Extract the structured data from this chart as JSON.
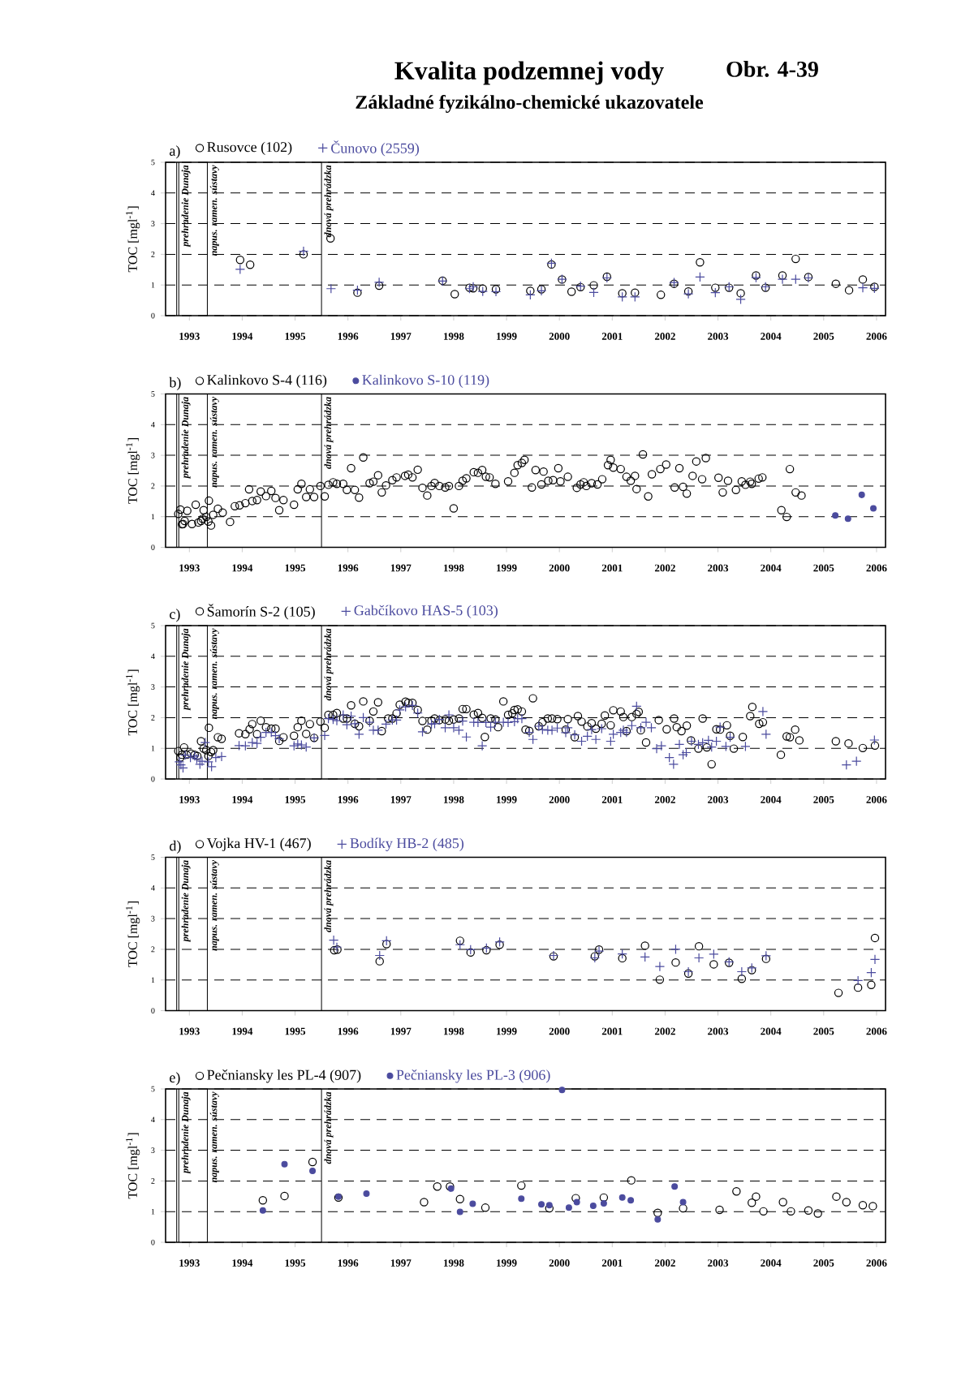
{
  "chart_data": [
    {
      "type": "scatter",
      "title": "Kvalita podzemnej vody",
      "subtitle": "Základné fyzikálno-chemické ukazovatele",
      "annotations": [
        "Obr. 4-39"
      ],
      "legend_title": "a)",
      "ylabel": "TOC [mgl$^{-1}$]",
      "legend": "top left",
      "grid": "y",
      "xlim": [
        1992.55,
        2006.17
      ],
      "xticks": [
        1993,
        1994,
        1995,
        1996,
        1997,
        1998,
        1999,
        2000,
        2001,
        2002,
        2003,
        2004,
        2005,
        2006
      ],
      "ylim": [
        0,
        5
      ],
      "yticks": [
        0,
        1,
        2,
        3,
        4,
        5
      ],
      "ref_lines": [
        {
          "axis": "x",
          "value": 1992.76,
          "label": null
        },
        {
          "axis": "x",
          "value": 1992.8,
          "label": "prehradenie Dunaja"
        },
        {
          "axis": "x",
          "value": 1993.34,
          "label": "napus. ramen. sústavy"
        },
        {
          "axis": "x",
          "value": 1995.5,
          "label": "dnová prehrádzka"
        }
      ],
      "series": [
        {
          "name": "Rusovce (102)",
          "color": "#000000",
          "marker": "circle",
          "x": [
            1993.96,
            1994.15,
            1995.16,
            1995.67,
            1996.18,
            1996.59,
            1997.79,
            1998.02,
            1998.3,
            1998.37,
            1998.55,
            1998.8,
            1999.45,
            1999.66,
            1999.85,
            2000.05,
            2000.23,
            2000.4,
            2000.65,
            2000.9,
            2001.19,
            2001.43,
            2001.92,
            2002.17,
            2002.44,
            2002.66,
            2002.95,
            2003.21,
            2003.43,
            2003.72,
            2003.9,
            2004.22,
            2004.47,
            2004.71,
            2005.23,
            2005.48,
            2005.74,
            2005.96
          ],
          "values": [
            1.82,
            1.66,
            2.0,
            2.52,
            0.75,
            0.98,
            1.14,
            0.7,
            0.91,
            0.89,
            0.88,
            0.86,
            0.81,
            0.86,
            1.67,
            1.18,
            0.78,
            0.93,
            0.99,
            1.27,
            0.73,
            0.75,
            0.68,
            1.04,
            0.79,
            1.74,
            0.91,
            0.91,
            0.73,
            1.31,
            0.91,
            1.31,
            1.85,
            1.26,
            1.04,
            0.83,
            1.18,
            0.94
          ]
        },
        {
          "name": "Čunovo (2559)",
          "color": "#4b4b9e",
          "marker": "cross",
          "x": [
            1993.96,
            1995.16,
            1995.68,
            1996.18,
            1996.59,
            1997.79,
            1998.3,
            1998.37,
            1998.55,
            1998.8,
            1999.45,
            1999.66,
            1999.85,
            2000.05,
            2000.4,
            2000.65,
            2000.9,
            2001.19,
            2001.43,
            2002.17,
            2002.44,
            2002.66,
            2002.95,
            2003.21,
            2003.43,
            2003.72,
            2003.9,
            2004.22,
            2004.47,
            2004.71,
            2005.74,
            2005.96
          ],
          "values": [
            1.51,
            2.1,
            0.88,
            0.83,
            1.09,
            1.13,
            0.88,
            0.94,
            0.79,
            0.78,
            0.68,
            0.81,
            1.71,
            1.19,
            0.96,
            0.76,
            1.23,
            0.61,
            0.61,
            1.08,
            0.71,
            1.26,
            0.75,
            0.94,
            0.53,
            1.24,
            0.94,
            1.19,
            1.19,
            1.23,
            0.91,
            0.89
          ]
        }
      ]
    },
    {
      "type": "scatter",
      "legend_title": "b)",
      "ylabel": "TOC [mgl$^{-1}$]",
      "legend": "top left",
      "grid": "y",
      "xlim": [
        1992.55,
        2006.17
      ],
      "xticks": [
        1993,
        1994,
        1995,
        1996,
        1997,
        1998,
        1999,
        2000,
        2001,
        2002,
        2003,
        2004,
        2005,
        2006
      ],
      "ylim": [
        0,
        5
      ],
      "yticks": [
        0,
        1,
        2,
        3,
        4,
        5
      ],
      "ref_lines": [
        {
          "axis": "x",
          "value": 1992.76,
          "label": null
        },
        {
          "axis": "x",
          "value": 1992.8,
          "label": "prehradenie Dunaja"
        },
        {
          "axis": "x",
          "value": 1993.34,
          "label": "napus. ramen. sústavy"
        },
        {
          "axis": "x",
          "value": 1995.5,
          "label": "dnová prehrádzka"
        }
      ],
      "series": [
        {
          "name": "Kalinkovo S-4 (116)",
          "color": "#000000",
          "marker": "circle",
          "x": [
            1992.79,
            1992.83,
            1992.86,
            1992.88,
            1992.91,
            1992.96,
            1993.05,
            1993.12,
            1993.17,
            1993.22,
            1993.25,
            1993.27,
            1993.32,
            1993.36,
            1993.37,
            1993.41,
            1993.45,
            1993.54,
            1993.63,
            1993.77,
            1993.86,
            1993.95,
            1994.06,
            1994.13,
            1994.19,
            1994.28,
            1994.35,
            1994.45,
            1994.55,
            1994.63,
            1994.7,
            1994.78,
            1994.98,
            1995.05,
            1995.12,
            1995.21,
            1995.28,
            1995.36,
            1995.48,
            1995.56,
            1995.63,
            1995.72,
            1995.79,
            1995.91,
            1995.98,
            1996.06,
            1996.13,
            1996.21,
            1996.29,
            1996.41,
            1996.48,
            1996.57,
            1996.64,
            1996.72,
            1996.84,
            1996.92,
            1997.08,
            1997.14,
            1997.22,
            1997.32,
            1997.41,
            1997.5,
            1997.58,
            1997.64,
            1997.73,
            1997.84,
            1997.91,
            1998.0,
            1998.1,
            1998.17,
            1998.24,
            1998.38,
            1998.46,
            1998.54,
            1998.61,
            1998.68,
            1998.79,
            1999.03,
            1999.15,
            1999.21,
            1999.29,
            1999.34,
            1999.48,
            1999.55,
            1999.66,
            1999.7,
            1999.79,
            1999.88,
            1999.98,
            2000.02,
            2000.16,
            2000.33,
            2000.4,
            2000.46,
            2000.51,
            2000.61,
            2000.72,
            2000.81,
            2000.92,
            2000.97,
            2001.02,
            2001.16,
            2001.27,
            2001.35,
            2001.43,
            2001.46,
            2001.58,
            2001.68,
            2001.75,
            2001.91,
            2002.02,
            2002.18,
            2002.27,
            2002.34,
            2002.41,
            2002.52,
            2002.59,
            2002.7,
            2002.77,
            2003.01,
            2003.09,
            2003.19,
            2003.34,
            2003.45,
            2003.52,
            2003.61,
            2003.64,
            2003.77,
            2003.84,
            2004.2,
            2004.3,
            2004.36,
            2004.47,
            2004.58
          ],
          "values": [
            1.09,
            1.23,
            0.75,
            0.76,
            0.86,
            1.19,
            0.76,
            1.39,
            0.81,
            0.86,
            0.93,
            1.21,
            0.99,
            0.84,
            1.52,
            0.71,
            1.06,
            1.26,
            1.13,
            0.83,
            1.34,
            1.37,
            1.44,
            1.89,
            1.51,
            1.54,
            1.82,
            1.67,
            1.84,
            1.61,
            1.21,
            1.54,
            1.39,
            1.89,
            2.07,
            1.64,
            1.89,
            1.64,
            2.0,
            1.66,
            2.04,
            2.12,
            2.07,
            2.07,
            1.87,
            2.58,
            1.87,
            1.62,
            2.93,
            2.09,
            2.14,
            2.35,
            1.79,
            2.02,
            2.19,
            2.28,
            2.33,
            2.37,
            2.28,
            2.53,
            1.94,
            1.69,
            2.0,
            2.1,
            2.0,
            1.95,
            2.0,
            1.27,
            2.0,
            2.17,
            2.25,
            2.45,
            2.43,
            2.52,
            2.3,
            2.28,
            2.07,
            2.15,
            2.43,
            2.68,
            2.75,
            2.85,
            1.95,
            2.52,
            2.05,
            2.47,
            2.17,
            2.19,
            2.58,
            2.15,
            2.3,
            1.94,
            2.05,
            2.12,
            2.0,
            2.09,
            2.05,
            2.22,
            2.68,
            2.85,
            2.6,
            2.55,
            2.3,
            2.17,
            2.33,
            1.9,
            3.03,
            1.66,
            2.38,
            2.55,
            2.7,
            1.95,
            2.58,
            1.97,
            1.75,
            2.33,
            2.8,
            2.22,
            2.91,
            2.27,
            1.79,
            2.17,
            1.87,
            2.15,
            2.04,
            2.14,
            2.07,
            2.24,
            2.28,
            1.21,
            0.99,
            2.55,
            1.79,
            1.69
          ]
        },
        {
          "name": "Kalinkovo S-10 (119)",
          "color": "#4b4b9e",
          "marker": "circle",
          "x": [
            2005.22,
            2005.46,
            2005.72,
            2005.94
          ],
          "values": [
            1.04,
            0.93,
            1.71,
            1.27
          ]
        }
      ]
    },
    {
      "type": "scatter",
      "legend_title": "c)",
      "ylabel": "TOC [mgl$^{-1}$]",
      "legend": "top left",
      "grid": "y",
      "xlim": [
        1992.55,
        2006.17
      ],
      "xticks": [
        1993,
        1994,
        1995,
        1996,
        1997,
        1998,
        1999,
        2000,
        2001,
        2002,
        2003,
        2004,
        2005,
        2006
      ],
      "ylim": [
        0,
        5
      ],
      "yticks": [
        0,
        1,
        2,
        3,
        4,
        5
      ],
      "ref_lines": [
        {
          "axis": "x",
          "value": 1992.76,
          "label": null
        },
        {
          "axis": "x",
          "value": 1992.8,
          "label": "prehradenie Dunaja"
        },
        {
          "axis": "x",
          "value": 1993.34,
          "label": "napus. ramen. sústavy"
        },
        {
          "axis": "x",
          "value": 1995.5,
          "label": "dnová prehrádzka"
        }
      ],
      "series": [
        {
          "name": "Šamorín S-2 (105)",
          "color": "#000000",
          "marker": "circle",
          "x": [
            1992.79,
            1992.83,
            1992.86,
            1992.9,
            1992.95,
            1993.03,
            1993.1,
            1993.15,
            1993.22,
            1993.27,
            1993.32,
            1993.36,
            1993.37,
            1993.41,
            1993.45,
            1993.54,
            1993.61,
            1993.94,
            1994.06,
            1994.14,
            1994.19,
            1994.28,
            1994.35,
            1994.45,
            1994.55,
            1994.63,
            1994.7,
            1994.78,
            1994.98,
            1995.05,
            1995.12,
            1995.21,
            1995.28,
            1995.36,
            1995.48,
            1995.56,
            1995.63,
            1995.72,
            1995.79,
            1995.91,
            1995.98,
            1996.06,
            1996.13,
            1996.21,
            1996.29,
            1996.41,
            1996.48,
            1996.57,
            1996.64,
            1996.76,
            1996.84,
            1996.92,
            1996.98,
            1997.09,
            1997.14,
            1997.22,
            1997.32,
            1997.41,
            1997.5,
            1997.58,
            1997.64,
            1997.73,
            1997.84,
            1997.91,
            1998.0,
            1998.1,
            1998.17,
            1998.24,
            1998.38,
            1998.46,
            1998.54,
            1998.59,
            1998.7,
            1998.79,
            1998.84,
            1998.94,
            1999.03,
            1999.11,
            1999.15,
            1999.21,
            1999.29,
            1999.36,
            1999.43,
            1999.5,
            1999.61,
            1999.68,
            1999.78,
            1999.86,
            1999.96,
            2000.12,
            2000.16,
            2000.29,
            2000.35,
            2000.42,
            2000.53,
            2000.61,
            2000.69,
            2000.8,
            2000.86,
            2000.97,
            2001.02,
            2001.16,
            2001.21,
            2001.27,
            2001.37,
            2001.46,
            2001.5,
            2001.54,
            2001.64,
            2001.88,
            2002.03,
            2002.17,
            2002.22,
            2002.31,
            2002.41,
            2002.49,
            2002.63,
            2002.71,
            2002.79,
            2002.88,
            2002.97,
            2003.04,
            2003.17,
            2003.23,
            2003.3,
            2003.47,
            2003.61,
            2003.65,
            2003.78,
            2003.85,
            2004.19,
            2004.3,
            2004.36,
            2004.46,
            2004.54,
            2005.23,
            2005.47,
            2005.74,
            2005.97
          ],
          "values": [
            0.91,
            0.7,
            0.79,
            1.03,
            0.79,
            0.83,
            0.79,
            0.75,
            1.23,
            0.99,
            0.94,
            0.75,
            1.67,
            0.88,
            0.94,
            1.36,
            1.31,
            1.49,
            1.46,
            1.62,
            1.79,
            1.46,
            1.9,
            1.69,
            1.64,
            1.64,
            1.24,
            1.36,
            1.41,
            1.69,
            1.9,
            1.47,
            1.79,
            1.34,
            1.87,
            1.67,
            2.09,
            2.09,
            2.15,
            1.97,
            1.97,
            2.4,
            1.8,
            1.72,
            2.53,
            1.9,
            2.2,
            2.5,
            1.56,
            1.97,
            1.97,
            2.14,
            2.42,
            2.52,
            2.48,
            2.48,
            2.25,
            1.89,
            1.61,
            1.9,
            1.97,
            1.92,
            1.94,
            1.9,
            1.94,
            1.97,
            2.28,
            2.28,
            2.1,
            2.15,
            1.99,
            1.37,
            1.97,
            1.94,
            1.69,
            2.53,
            2.09,
            2.14,
            2.25,
            2.27,
            2.2,
            1.61,
            1.57,
            2.63,
            1.72,
            1.85,
            1.97,
            1.97,
            1.95,
            1.61,
            1.95,
            1.36,
            2.05,
            1.87,
            1.71,
            1.82,
            1.64,
            1.8,
            2.07,
            1.75,
            2.24,
            2.2,
            2.02,
            1.56,
            2.02,
            2.12,
            2.19,
            1.59,
            1.19,
            1.92,
            1.62,
            1.97,
            1.69,
            1.56,
            1.74,
            1.26,
            0.99,
            1.97,
            1.03,
            0.48,
            1.62,
            1.61,
            1.75,
            1.41,
            0.99,
            1.37,
            2.05,
            2.35,
            1.8,
            1.85,
            0.79,
            1.39,
            1.36,
            1.61,
            1.26,
            1.23,
            1.16,
            1.01,
            1.09
          ]
        },
        {
          "name": "Gabčíkovo HAS-5 (103)",
          "color": "#4b4b9e",
          "marker": "cross",
          "x": [
            1992.81,
            1992.84,
            1992.88,
            1992.92,
            1993.02,
            1993.1,
            1993.14,
            1993.2,
            1993.24,
            1993.3,
            1993.36,
            1993.42,
            1993.5,
            1993.61,
            1993.94,
            1994.06,
            1994.19,
            1994.28,
            1994.35,
            1994.45,
            1994.55,
            1994.63,
            1994.7,
            1994.98,
            1995.05,
            1995.12,
            1995.21,
            1995.36,
            1995.56,
            1995.63,
            1995.72,
            1995.79,
            1995.91,
            1995.98,
            1996.06,
            1996.13,
            1996.21,
            1996.29,
            1996.41,
            1996.48,
            1996.57,
            1996.72,
            1996.84,
            1996.92,
            1996.98,
            1997.09,
            1997.22,
            1997.32,
            1997.41,
            1997.58,
            1997.64,
            1997.73,
            1997.84,
            1997.91,
            1998.0,
            1998.1,
            1998.17,
            1998.24,
            1998.38,
            1998.46,
            1998.54,
            1998.61,
            1998.7,
            1998.79,
            1998.94,
            1999.03,
            1999.15,
            1999.21,
            1999.29,
            1999.43,
            1999.5,
            1999.61,
            1999.68,
            1999.78,
            1999.86,
            1999.96,
            2000.12,
            2000.16,
            2000.29,
            2000.42,
            2000.53,
            2000.61,
            2000.69,
            2000.8,
            2000.97,
            2001.02,
            2001.16,
            2001.21,
            2001.27,
            2001.37,
            2001.46,
            2001.54,
            2001.64,
            2001.74,
            2001.84,
            2001.93,
            2002.08,
            2002.16,
            2002.27,
            2002.34,
            2002.4,
            2002.5,
            2002.63,
            2002.71,
            2002.82,
            2002.88,
            2002.97,
            2003.04,
            2003.15,
            2003.23,
            2003.52,
            2003.85,
            2003.91,
            2005.43,
            2005.62,
            2005.96
          ],
          "values": [
            0.56,
            0.46,
            0.36,
            0.78,
            0.7,
            0.75,
            0.66,
            0.48,
            0.58,
            1.19,
            0.56,
            0.4,
            0.7,
            0.73,
            1.09,
            1.08,
            1.19,
            1.16,
            1.36,
            1.52,
            1.52,
            1.41,
            1.31,
            1.08,
            1.14,
            1.11,
            1.04,
            1.34,
            1.42,
            1.97,
            1.94,
            1.9,
            2.09,
            1.77,
            2.05,
            1.8,
            1.46,
            2.0,
            1.85,
            1.59,
            1.59,
            1.79,
            1.92,
            1.92,
            2.25,
            2.35,
            2.4,
            2.15,
            1.54,
            1.79,
            1.8,
            1.94,
            1.67,
            2.09,
            1.67,
            1.59,
            1.89,
            1.37,
            1.85,
            1.84,
            1.08,
            1.84,
            1.69,
            1.85,
            1.85,
            1.84,
            1.87,
            1.97,
            1.97,
            1.52,
            1.29,
            1.72,
            1.61,
            1.59,
            1.59,
            1.66,
            1.51,
            1.67,
            1.44,
            1.23,
            1.39,
            1.61,
            1.29,
            1.64,
            1.23,
            1.46,
            1.52,
            1.59,
            1.52,
            1.74,
            2.37,
            1.67,
            1.85,
            1.67,
            0.99,
            1.08,
            0.7,
            0.48,
            1.13,
            0.79,
            0.86,
            1.23,
            1.13,
            1.18,
            1.26,
            1.04,
            1.23,
            1.69,
            1.06,
            1.36,
            1.06,
            2.2,
            1.46,
            0.46,
            0.58,
            1.27
          ]
        }
      ]
    },
    {
      "type": "scatter",
      "legend_title": "d)",
      "ylabel": "TOC [mgl$^{-1}$]",
      "legend": "top left",
      "grid": "y",
      "xlim": [
        1992.55,
        2006.17
      ],
      "xticks": [
        1993,
        1994,
        1995,
        1996,
        1997,
        1998,
        1999,
        2000,
        2001,
        2002,
        2003,
        2004,
        2005,
        2006
      ],
      "ylim": [
        0,
        5
      ],
      "yticks": [
        0,
        1,
        2,
        3,
        4,
        5
      ],
      "ref_lines": [
        {
          "axis": "x",
          "value": 1992.76,
          "label": null
        },
        {
          "axis": "x",
          "value": 1992.8,
          "label": "prehradenie Dunaja"
        },
        {
          "axis": "x",
          "value": 1993.34,
          "label": "napus. ramen. sústavy"
        },
        {
          "axis": "x",
          "value": 1995.5,
          "label": "dnová prehrádzka"
        }
      ],
      "series": [
        {
          "name": "Vojka HV-1 (467)",
          "color": "#000000",
          "marker": "circle",
          "x": [
            1995.74,
            1995.8,
            1996.6,
            1996.73,
            1998.12,
            1998.32,
            1998.62,
            1998.87,
            1999.89,
            2000.67,
            2000.75,
            2001.19,
            2001.62,
            2001.9,
            2002.2,
            2002.44,
            2002.64,
            2002.92,
            2003.21,
            2003.45,
            2003.64,
            2003.91,
            2005.28,
            2005.65,
            2005.9,
            2005.97
          ],
          "values": [
            1.97,
            1.99,
            1.61,
            2.17,
            2.28,
            1.9,
            1.97,
            2.15,
            1.77,
            1.77,
            1.99,
            1.71,
            2.12,
            1.01,
            1.57,
            1.21,
            2.1,
            1.51,
            1.56,
            1.04,
            1.32,
            1.69,
            0.58,
            0.75,
            0.84,
            2.37
          ]
        },
        {
          "name": "Bodíky HB-2 (485)",
          "color": "#4b4b9e",
          "marker": "cross",
          "x": [
            1995.73,
            1995.79,
            1996.6,
            1996.73,
            1998.12,
            1998.32,
            1998.62,
            1998.87,
            1999.89,
            2000.67,
            2000.75,
            2001.19,
            2001.62,
            2001.9,
            2002.2,
            2002.44,
            2002.64,
            2002.92,
            2003.21,
            2003.45,
            2003.64,
            2003.91,
            2005.65,
            2005.9,
            2005.97
          ],
          "values": [
            2.3,
            2.07,
            1.8,
            2.28,
            2.15,
            1.99,
            2.04,
            2.24,
            1.8,
            1.72,
            1.94,
            1.85,
            1.75,
            1.44,
            2.0,
            1.27,
            1.72,
            1.84,
            1.59,
            1.27,
            1.39,
            1.79,
            0.98,
            1.24,
            1.67
          ]
        }
      ]
    },
    {
      "type": "scatter",
      "legend_title": "e)",
      "ylabel": "TOC [mgl$^{-1}$]",
      "legend": "top left",
      "grid": "y",
      "xlim": [
        1992.55,
        2006.17
      ],
      "xticks": [
        1993,
        1994,
        1995,
        1996,
        1997,
        1998,
        1999,
        2000,
        2001,
        2002,
        2003,
        2004,
        2005,
        2006
      ],
      "ylim": [
        0,
        5
      ],
      "yticks": [
        0,
        1,
        2,
        3,
        4,
        5
      ],
      "ref_lines": [
        {
          "axis": "x",
          "value": 1992.76,
          "label": null
        },
        {
          "axis": "x",
          "value": 1992.8,
          "label": "prehradenie Dunaja"
        },
        {
          "axis": "x",
          "value": 1993.34,
          "label": "napus. ramen. sústavy"
        },
        {
          "axis": "x",
          "value": 1995.5,
          "label": "dnová prehrádzka"
        }
      ],
      "series": [
        {
          "name": "Pečniansky les PL-4 (907)",
          "color": "#000000",
          "marker": "circle",
          "x": [
            1994.39,
            1994.8,
            1995.33,
            1995.82,
            1997.44,
            1997.69,
            1997.93,
            1998.12,
            1998.6,
            1999.28,
            1999.81,
            2000.31,
            2000.84,
            2001.36,
            2001.86,
            2002.34,
            2003.03,
            2003.35,
            2003.64,
            2003.72,
            2003.86,
            2004.23,
            2004.38,
            2004.71,
            2004.89,
            2005.24,
            2005.43,
            2005.74,
            2005.93
          ],
          "values": [
            1.37,
            1.51,
            2.62,
            1.46,
            1.31,
            1.82,
            1.82,
            1.41,
            1.13,
            1.85,
            1.11,
            1.44,
            1.46,
            2.02,
            0.96,
            1.11,
            1.06,
            1.66,
            1.29,
            1.49,
            1.01,
            1.31,
            1.01,
            1.04,
            0.94,
            1.49,
            1.31,
            1.21,
            1.18
          ]
        },
        {
          "name": "Pečniansky les PL-3 (906)",
          "color": "#4b4b9e",
          "marker": "circle",
          "x": [
            1994.39,
            1994.8,
            1995.33,
            1995.82,
            1996.35,
            1997.95,
            1998.12,
            1998.36,
            1999.28,
            1999.66,
            1999.81,
            2000.05,
            2000.18,
            2000.33,
            2000.64,
            2000.84,
            2001.19,
            2001.35,
            2001.86,
            2002.18,
            2002.34
          ],
          "values": [
            1.04,
            2.55,
            2.33,
            1.49,
            1.59,
            1.75,
            0.99,
            1.26,
            1.42,
            1.24,
            1.21,
            4.97,
            1.13,
            1.31,
            1.19,
            1.27,
            1.46,
            1.37,
            0.75,
            1.82,
            1.31
          ]
        }
      ]
    }
  ]
}
